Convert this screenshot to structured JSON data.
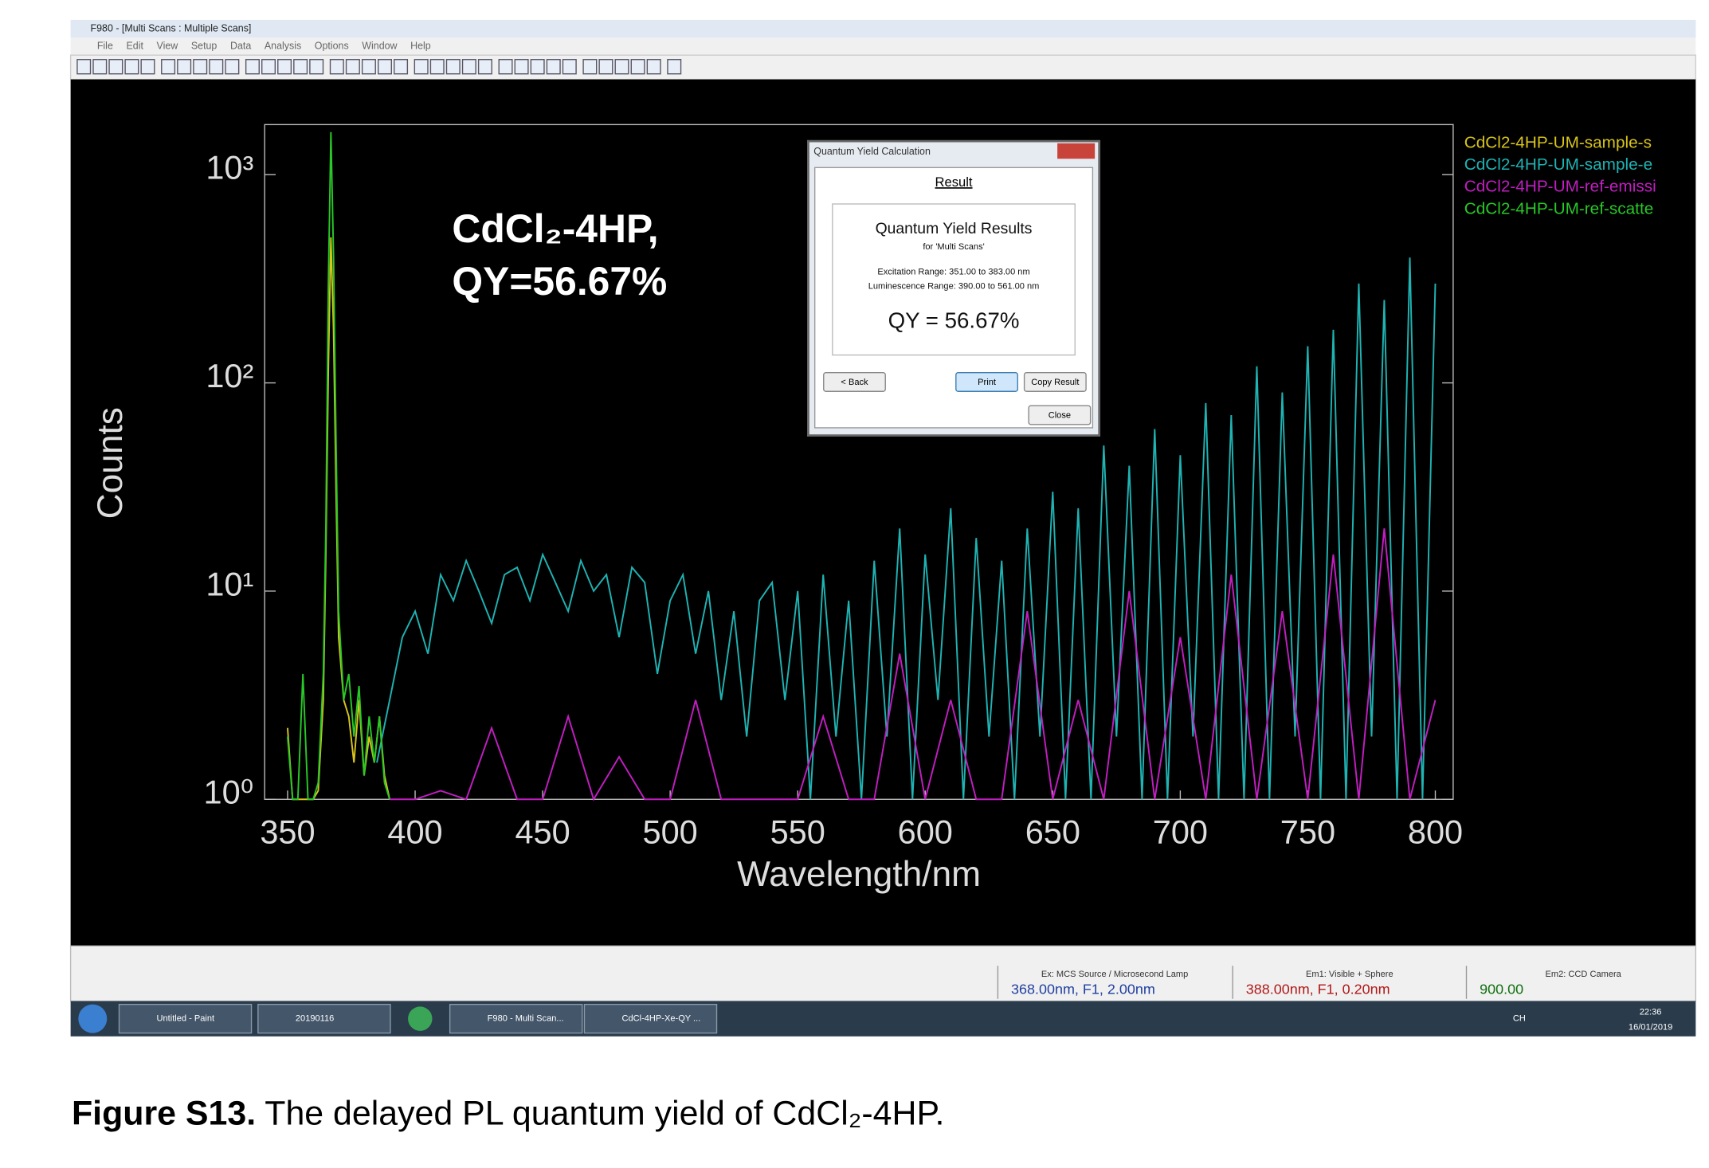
{
  "window": {
    "title": "F980 - [Multi Scans : Multiple Scans]",
    "menu": [
      "File",
      "Edit",
      "View",
      "Setup",
      "Data",
      "Analysis",
      "Options",
      "Window",
      "Help"
    ]
  },
  "chart_data": {
    "type": "line",
    "log_scale_y": true,
    "xlabel": "Wavelength/nm",
    "ylabel": "Counts",
    "xlim": [
      341,
      807
    ],
    "ylim": [
      1,
      1740
    ],
    "xticks": [
      350,
      400,
      450,
      500,
      550,
      600,
      650,
      700,
      750,
      800
    ],
    "yticks": [
      {
        "value": 1,
        "label": "10⁰"
      },
      {
        "value": 10,
        "label": "10¹"
      },
      {
        "value": 100,
        "label": "10²"
      },
      {
        "value": 1000,
        "label": "10³"
      }
    ],
    "annotation": [
      "CdCl₂-4HP,",
      "QY=56.67%"
    ],
    "legend_position": "outside-right",
    "series": [
      {
        "name": "CdCl2-4HP-UM-sample-s",
        "color": "#d8c41c",
        "x": [
          350,
          352,
          354,
          356,
          358,
          360,
          362,
          364,
          365,
          366,
          367,
          368,
          369,
          370,
          372,
          374,
          376,
          378,
          380,
          382,
          384,
          386,
          388,
          390
        ],
        "values": [
          2.2,
          1,
          1,
          1,
          1,
          1,
          1.1,
          3,
          15,
          120,
          500,
          180,
          30,
          6,
          3,
          2.5,
          1.5,
          3,
          1.3,
          2,
          1.5,
          2.5,
          1.3,
          1
        ]
      },
      {
        "name": "CdCl2-4HP-UM-sample-e",
        "color": "#1fb3b3",
        "x": [
          385,
          390,
          395,
          400,
          405,
          410,
          415,
          420,
          425,
          430,
          435,
          440,
          445,
          450,
          455,
          460,
          465,
          470,
          475,
          480,
          485,
          490,
          495,
          500,
          505,
          510,
          515,
          520,
          525,
          530,
          535,
          540,
          545,
          550,
          555,
          560,
          565,
          570,
          575,
          580,
          585,
          590,
          595,
          600,
          605,
          610,
          615,
          620,
          625,
          630,
          635,
          640,
          645,
          650,
          655,
          660,
          665,
          670,
          675,
          680,
          685,
          690,
          695,
          700,
          705,
          710,
          715,
          720,
          725,
          730,
          735,
          740,
          745,
          750,
          755,
          760,
          765,
          770,
          775,
          780,
          785,
          790,
          795,
          800
        ],
        "values": [
          1.5,
          3,
          6,
          8,
          5,
          12,
          9,
          14,
          10,
          7,
          12,
          13,
          9,
          15,
          11,
          8,
          14,
          10,
          12,
          6,
          13,
          11,
          4,
          9,
          12,
          5,
          10,
          3,
          8,
          2,
          9,
          11,
          3,
          10,
          1,
          12,
          2,
          9,
          1,
          14,
          2,
          20,
          1,
          15,
          3,
          25,
          1,
          18,
          2,
          14,
          1,
          20,
          2,
          30,
          1,
          25,
          1,
          50,
          2,
          40,
          1,
          60,
          1,
          45,
          2,
          80,
          1,
          70,
          1,
          120,
          1,
          90,
          2,
          150,
          1,
          180,
          1,
          300,
          2,
          250,
          1,
          400,
          1,
          300
        ]
      },
      {
        "name": "CdCl2-4HP-UM-ref-emissi",
        "color": "#c21ec2",
        "x": [
          390,
          400,
          410,
          420,
          430,
          440,
          450,
          460,
          470,
          480,
          490,
          500,
          510,
          520,
          530,
          540,
          550,
          560,
          570,
          580,
          590,
          600,
          610,
          620,
          630,
          640,
          650,
          660,
          670,
          680,
          690,
          700,
          710,
          720,
          730,
          740,
          750,
          760,
          770,
          780,
          790,
          800
        ],
        "values": [
          1,
          1,
          1.1,
          1,
          2.2,
          1,
          1,
          2.5,
          1,
          1.6,
          1,
          1,
          3,
          1,
          1,
          1,
          1,
          2.5,
          1,
          1,
          5,
          1,
          3,
          1,
          1,
          8,
          1,
          3,
          1,
          10,
          1,
          6,
          1,
          12,
          1,
          8,
          1,
          15,
          1,
          20,
          1,
          3
        ]
      },
      {
        "name": "CdCl2-4HP-UM-ref-scatte",
        "color": "#28c828",
        "x": [
          350,
          352,
          354,
          356,
          358,
          360,
          362,
          364,
          365,
          366,
          367,
          368,
          369,
          370,
          372,
          374,
          376,
          378,
          380,
          382,
          384,
          386,
          388,
          390
        ],
        "values": [
          2,
          1,
          1,
          4,
          1,
          1,
          1.2,
          4,
          20,
          300,
          1600,
          400,
          50,
          8,
          3,
          4,
          2,
          3.5,
          1.3,
          2.5,
          1.5,
          2.5,
          1.2,
          1
        ]
      }
    ]
  },
  "dialog": {
    "title": "Quantum Yield Calculation",
    "heading": "Result",
    "results_title": "Quantum Yield Results",
    "for": "for 'Multi Scans'",
    "excitation": "Excitation Range: 351.00 to 383.00 nm",
    "luminescence": "Luminescence Range: 390.00 to 561.00 nm",
    "qy": "QY = 56.67%",
    "buttons": [
      "< Back",
      "Print",
      "Copy Result",
      "Close"
    ]
  },
  "status_bar": [
    {
      "label": "Ex: MCS Source / Microsecond Lamp",
      "value": "368.00nm, F1, 2.00nm"
    },
    {
      "label": "Em1: Visible + Sphere",
      "value": "388.00nm, F1, 0.20nm"
    },
    {
      "label": "Em2: CCD Camera",
      "value": "900.00"
    }
  ],
  "taskbar": {
    "items": [
      "Untitled - Paint",
      "20190116",
      "F980 - Multi Scan...",
      "CdCl-4HP-Xe-QY ..."
    ],
    "lang": "CH",
    "time": "22:36",
    "date": "16/01/2019"
  },
  "caption": {
    "label": "Figure S13.",
    "text": " The delayed PL quantum yield of CdCl₂-4HP."
  }
}
